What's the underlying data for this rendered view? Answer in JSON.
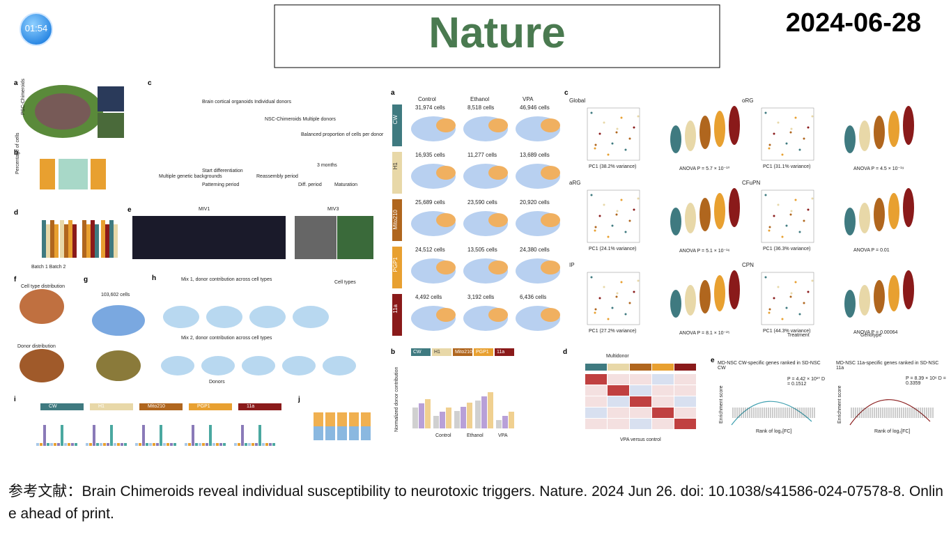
{
  "timer": "01:54",
  "header": {
    "title": "Nature",
    "date": "2024-06-28"
  },
  "left_figure": {
    "panels": [
      "a",
      "b",
      "c",
      "d",
      "e",
      "f",
      "g",
      "h",
      "i",
      "j"
    ],
    "texts": [
      "PSC-Chimeroids",
      "Percentage of cells",
      "Brain cortical organoids Individual donors",
      "NSC-Chimeroids Multiple donors",
      "Balanced proportion of cells per donor",
      "3 months",
      "Multiple genetic backgrounds",
      "Start differentiation",
      "Patterning period",
      "Reassembly period",
      "Diff. period",
      "Maturation",
      "Batch 1 Batch 2",
      "MIV1",
      "MIV3",
      "Cell type distribution",
      "Donor distribution",
      "Mix 1, donor contribution across cell types",
      "Mix 2, donor contribution across cell types",
      "103,602 cells",
      "Cell types",
      "Donors"
    ],
    "donors": [
      "CW",
      "H1",
      "Mito210",
      "PGP1",
      "11a"
    ]
  },
  "middle_figure": {
    "panels": [
      "a",
      "b"
    ],
    "treatments": [
      "Control",
      "Ethanol",
      "VPA"
    ],
    "rows": [
      "CW",
      "H1",
      "Mito210",
      "PGP1",
      "11a"
    ],
    "cells": [
      [
        "31,974 cells",
        "8,518 cells",
        "46,946 cells"
      ],
      [
        "16,935 cells",
        "11,277 cells",
        "13,689 cells"
      ],
      [
        "25,689 cells",
        "23,590 cells",
        "20,920 cells"
      ],
      [
        "24,512 cells",
        "13,505 cells",
        "24,380 cells"
      ],
      [
        "4,492 cells",
        "3,192 cells",
        "6,436 cells"
      ]
    ],
    "y_label": "Normalized donor contribution",
    "legend": [
      "Control",
      "Ethanol",
      "VPA"
    ]
  },
  "right_figure": {
    "panels": [
      "c",
      "d",
      "e"
    ],
    "subplots": [
      {
        "title": "Global",
        "anova": "ANOVA P = 5.7 × 10⁻¹⁰",
        "pc1": "PC1 (38.2% variance)"
      },
      {
        "title": "oRG",
        "anova": "ANOVA P = 4.5 × 10⁻¹⁹",
        "pc1": "PC1 (31.1% variance)"
      },
      {
        "title": "aRG",
        "anova": "ANOVA P = 5.1 × 10⁻¹⁶",
        "pc1": "PC1 (24.1% variance)"
      },
      {
        "title": "CFuPN",
        "anova": "ANOVA P = 0.01",
        "pc1": "PC1 (36.3% variance)"
      },
      {
        "title": "IP",
        "anova": "ANOVA P = 8.1 × 10⁻²⁵",
        "pc1": "PC1 (27.2% variance)"
      },
      {
        "title": "CPN",
        "anova": "ANOVA P = 0.00064",
        "pc1": "PC1 (44.3% variance)"
      }
    ],
    "multidonor": "Multidonor",
    "heatmap_caption": "VPA versus control",
    "gsea": [
      "MD-NSC CW-specific genes ranked in SD-NSC CW",
      "MD-NSC 11a-specific genes ranked in SD-NSC 11a"
    ],
    "gsea_stats": [
      "P = 4.42 × 10¹⁰ D = 0.1512",
      "P = 8.39 × 10⁶ D = 0.3359"
    ],
    "gsea_x": "Rank of log₂[FC]",
    "gsea_y": "Enrichment score",
    "genotype": "Genotype",
    "treatment": "Treatment"
  },
  "reference": "参考文献：Brain Chimeroids reveal individual susceptibility to neurotoxic triggers. Nature. 2024 Jun 26. doi: 10.1038/s41586-024-07578-8. Online ahead of print."
}
